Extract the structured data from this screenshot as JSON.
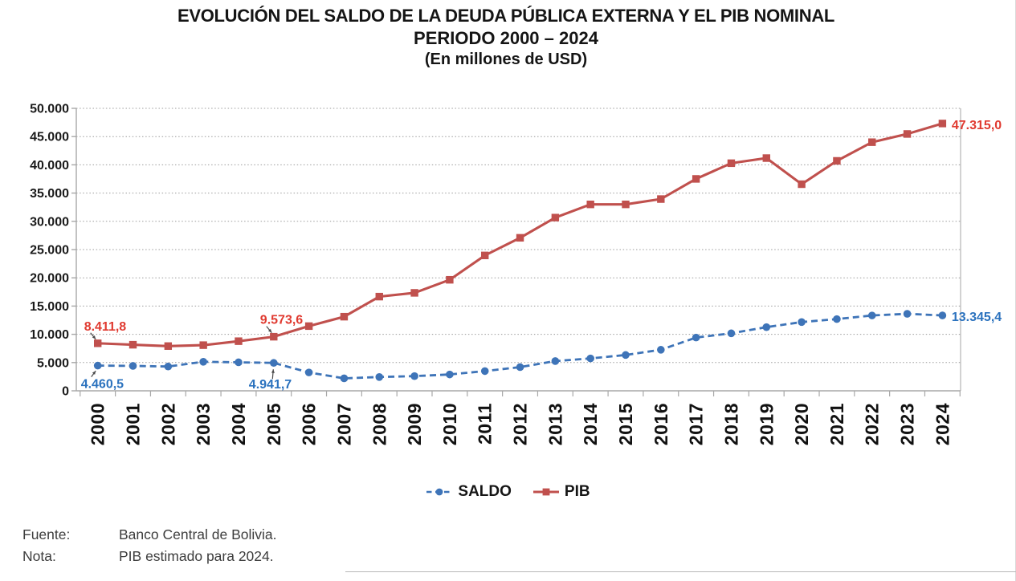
{
  "title": {
    "line1": "EVOLUCIÓN DEL SALDO DE LA DEUDA PÚBLICA EXTERNA Y EL PIB NOMINAL",
    "line2": "PERIODO 2000 – 2024",
    "line3": "(En millones de USD)"
  },
  "footer": {
    "fuente_label": "Fuente:",
    "fuente_value": "Banco Central de Bolivia.",
    "nota_label": "Nota:",
    "nota_value": "PIB estimado para 2024."
  },
  "chart_data": {
    "type": "line",
    "title": "EVOLUCIÓN DEL SALDO DE LA DEUDA PÚBLICA EXTERNA Y EL PIB NOMINAL PERIODO 2000 – 2024 (En millones de USD)",
    "unit": "millones de USD",
    "categories": [
      "2000",
      "2001",
      "2002",
      "2003",
      "2004",
      "2005",
      "2006",
      "2007",
      "2008",
      "2009",
      "2010",
      "2011",
      "2012",
      "2013",
      "2014",
      "2015",
      "2016",
      "2017",
      "2018",
      "2019",
      "2020",
      "2021",
      "2022",
      "2023",
      "2024"
    ],
    "ylim": [
      0,
      50000
    ],
    "ytick_step": 5000,
    "ytick_labels": [
      "0",
      "5.000",
      "10.000",
      "15.000",
      "20.000",
      "25.000",
      "30.000",
      "35.000",
      "40.000",
      "45.000",
      "50.000"
    ],
    "grid": "horizontal-dotted",
    "legend_position": "bottom",
    "series": [
      {
        "name": "PIB",
        "line_style": "solid",
        "marker": "square",
        "color": "#C0504D",
        "label_color": "#E03A30",
        "values": [
          8411.8,
          8154,
          7917,
          8082,
          8785,
          9573.6,
          11452,
          13120,
          16674,
          17340,
          19650,
          23963,
          27084,
          30659,
          32996,
          33000,
          33941,
          37509,
          40288,
          41193,
          36573,
          40703,
          44008,
          45464,
          47315.0
        ]
      },
      {
        "name": "SALDO",
        "line_style": "dashed",
        "marker": "circle",
        "color": "#3E74B8",
        "label_color": "#2B72BE",
        "values": [
          4460.5,
          4412,
          4300,
          5142,
          5045,
          4941.7,
          3248,
          2208,
          2443,
          2601,
          2891,
          3492,
          4196,
          5262,
          5736,
          6341,
          7268,
          9428,
          10178,
          11268,
          12172,
          12697,
          13335,
          13630,
          13345.4
        ]
      }
    ],
    "annotations": [
      {
        "series": "PIB",
        "category": "2000",
        "text": "8.411,8",
        "placement": "above-left",
        "arrow": true
      },
      {
        "series": "SALDO",
        "category": "2000",
        "text": "4.460,5",
        "placement": "below-left",
        "arrow": true
      },
      {
        "series": "PIB",
        "category": "2005",
        "text": "9.573,6",
        "placement": "above-left",
        "arrow": true
      },
      {
        "series": "SALDO",
        "category": "2005",
        "text": "4.941,7",
        "placement": "below-left-far",
        "arrow": true
      },
      {
        "series": "PIB",
        "category": "2024",
        "text": "47.315,0",
        "placement": "right",
        "arrow": false
      },
      {
        "series": "SALDO",
        "category": "2024",
        "text": "13.345,4",
        "placement": "right",
        "arrow": false
      }
    ]
  }
}
